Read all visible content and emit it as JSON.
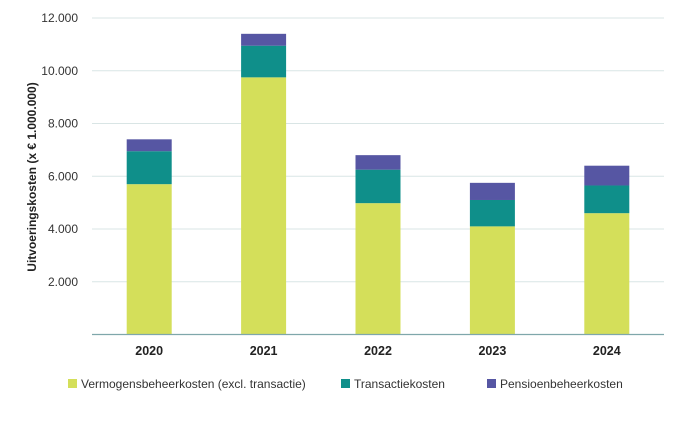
{
  "chart_data": {
    "type": "bar",
    "stacked": true,
    "title": "",
    "xlabel": "",
    "ylabel": "Uitvoeringskosten (x € 1.000.000)",
    "ylim": [
      0,
      12000
    ],
    "yticks": [
      2000,
      4000,
      6000,
      8000,
      10000,
      12000
    ],
    "ytick_labels": [
      "2.000",
      "4.000",
      "6.000",
      "8.000",
      "10.000",
      "12.000"
    ],
    "categories": [
      "2020",
      "2021",
      "2022",
      "2023",
      "2024"
    ],
    "grid": true,
    "legend_position": "bottom",
    "series": [
      {
        "name": "Vermogensbeheerkosten (excl. transactie)",
        "color": "#d4df5a",
        "values": [
          5700,
          9750,
          4980,
          4100,
          4600
        ]
      },
      {
        "name": "Transactiekosten",
        "color": "#0f8f8a",
        "values": [
          1250,
          1200,
          1270,
          1000,
          1050
        ]
      },
      {
        "name": "Pensioenbeheerkosten",
        "color": "#5656a3",
        "values": [
          450,
          450,
          550,
          650,
          750
        ]
      }
    ]
  }
}
